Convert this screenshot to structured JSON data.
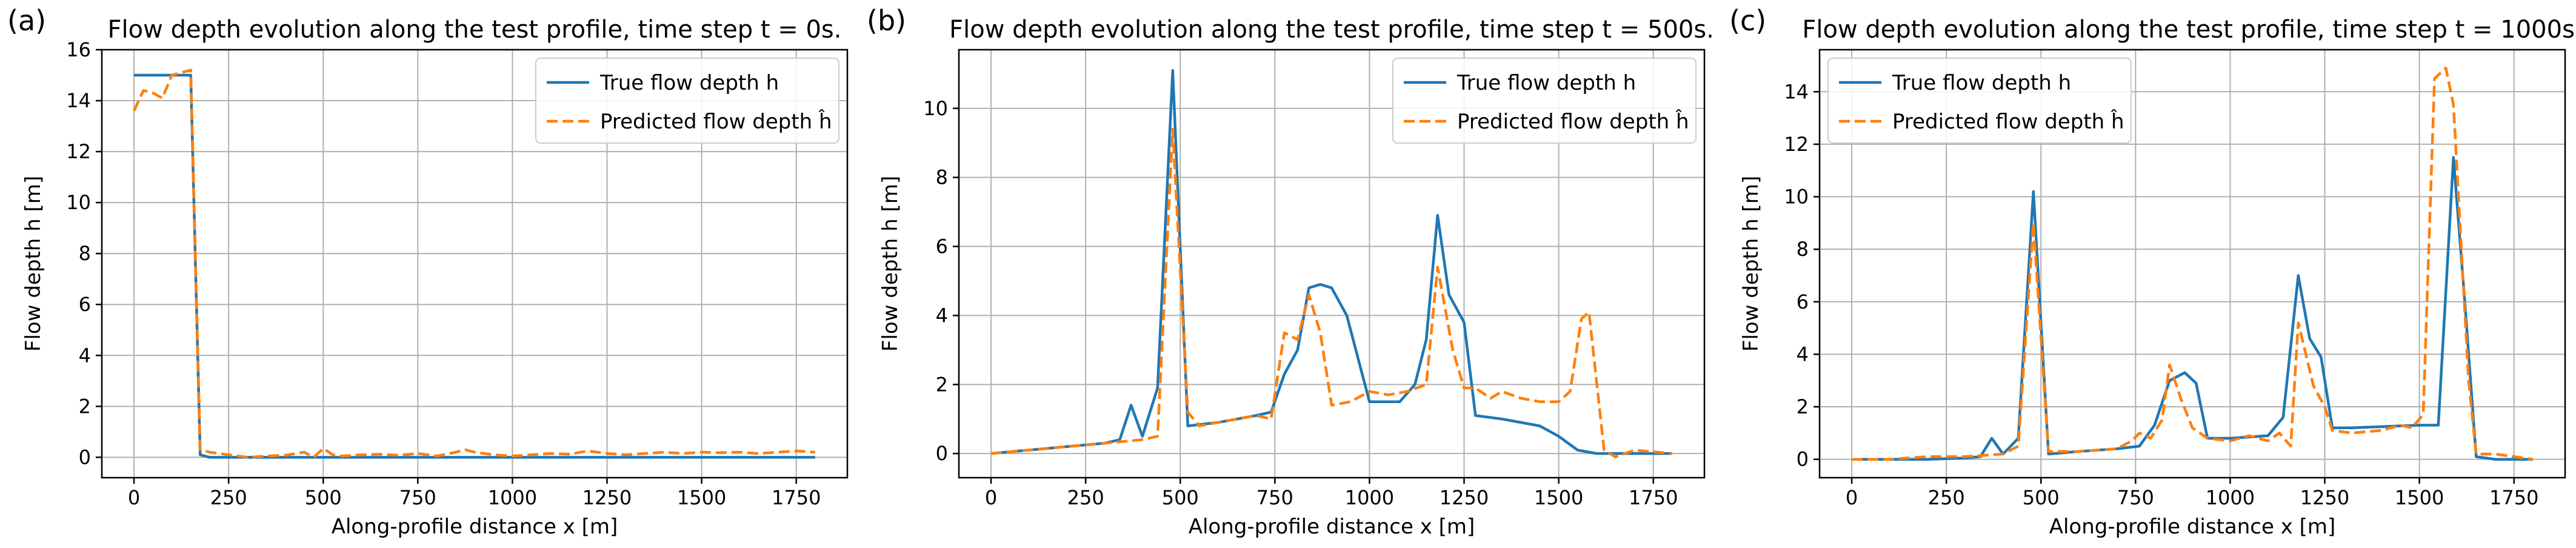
{
  "colors": {
    "true": "#1f77b4",
    "predicted": "#ff7f0e"
  },
  "chart_data": [
    {
      "type": "line",
      "panel_label": "(a)",
      "title": "Flow depth evolution along the test profile, time step t = 0s.",
      "xlabel": "Along-profile distance x [m]",
      "ylabel": "Flow depth h [m]",
      "xlim": [
        -85,
        1885
      ],
      "ylim": [
        -0.8,
        16
      ],
      "xticks": [
        0,
        250,
        500,
        750,
        1000,
        1250,
        1500,
        1750
      ],
      "yticks": [
        0,
        2,
        4,
        6,
        8,
        10,
        12,
        14,
        16
      ],
      "grid": true,
      "legend_position": "upper-right",
      "series": [
        {
          "name": "True flow depth h",
          "style": "solid",
          "x": [
            0,
            25,
            50,
            75,
            100,
            125,
            150,
            175,
            200,
            1800
          ],
          "y": [
            15,
            15,
            15,
            15,
            15,
            15,
            15,
            0.1,
            0,
            0
          ]
        },
        {
          "name": "Predicted flow depth ĥ",
          "style": "dashed",
          "x": [
            0,
            25,
            50,
            75,
            100,
            125,
            150,
            175,
            200,
            250,
            300,
            350,
            400,
            450,
            475,
            500,
            525,
            550,
            600,
            650,
            700,
            750,
            800,
            850,
            875,
            900,
            950,
            1000,
            1050,
            1100,
            1150,
            1200,
            1250,
            1300,
            1350,
            1400,
            1450,
            1500,
            1550,
            1600,
            1650,
            1700,
            1750,
            1800
          ],
          "y": [
            13.6,
            14.4,
            14.3,
            14.1,
            15.0,
            15.1,
            15.2,
            0.3,
            0.2,
            0.1,
            0,
            0.05,
            0.08,
            0.2,
            0,
            0.35,
            0.1,
            0.05,
            0.1,
            0.12,
            0.08,
            0.15,
            0.05,
            0.2,
            0.3,
            0.2,
            0.1,
            0.05,
            0.1,
            0.15,
            0.12,
            0.25,
            0.15,
            0.1,
            0.15,
            0.2,
            0.15,
            0.2,
            0.18,
            0.2,
            0.15,
            0.2,
            0.25,
            0.2
          ]
        }
      ]
    },
    {
      "type": "line",
      "panel_label": "(b)",
      "title": "Flow depth evolution along the test profile, time step t = 500s.",
      "xlabel": "Along-profile distance x [m]",
      "ylabel": "Flow depth h [m]",
      "xlim": [
        -85,
        1885
      ],
      "ylim": [
        -0.7,
        11.7
      ],
      "xticks": [
        0,
        250,
        500,
        750,
        1000,
        1250,
        1500,
        1750
      ],
      "yticks": [
        0,
        2,
        4,
        6,
        8,
        10
      ],
      "grid": true,
      "legend_position": "upper-right",
      "series": [
        {
          "name": "True flow depth h",
          "style": "solid",
          "x": [
            0,
            100,
            200,
            300,
            340,
            370,
            400,
            440,
            480,
            520,
            600,
            700,
            740,
            775,
            810,
            840,
            870,
            900,
            940,
            1000,
            1080,
            1120,
            1150,
            1180,
            1210,
            1250,
            1280,
            1350,
            1400,
            1450,
            1500,
            1550,
            1600,
            1650,
            1800
          ],
          "y": [
            0,
            0.1,
            0.2,
            0.3,
            0.4,
            1.4,
            0.5,
            1.9,
            11.1,
            0.8,
            0.9,
            1.1,
            1.2,
            2.3,
            3.0,
            4.8,
            4.9,
            4.8,
            4.0,
            1.5,
            1.5,
            2.0,
            3.3,
            6.9,
            4.6,
            3.8,
            1.1,
            1.0,
            0.9,
            0.8,
            0.5,
            0.1,
            0,
            0,
            0
          ]
        },
        {
          "name": "Predicted flow depth ĥ",
          "style": "dashed",
          "x": [
            0,
            100,
            200,
            300,
            400,
            440,
            480,
            520,
            550,
            600,
            700,
            740,
            775,
            810,
            840,
            870,
            900,
            950,
            1000,
            1050,
            1100,
            1150,
            1180,
            1220,
            1250,
            1280,
            1320,
            1350,
            1400,
            1450,
            1500,
            1530,
            1560,
            1580,
            1620,
            1650,
            1700,
            1800
          ],
          "y": [
            0,
            0.1,
            0.2,
            0.3,
            0.4,
            0.5,
            9.4,
            1.2,
            0.8,
            0.9,
            1.1,
            1.0,
            3.5,
            3.3,
            4.6,
            3.5,
            1.4,
            1.5,
            1.8,
            1.7,
            1.8,
            2.0,
            5.4,
            3.0,
            1.9,
            1.9,
            1.6,
            1.8,
            1.6,
            1.5,
            1.5,
            1.8,
            3.9,
            4.1,
            0.1,
            -0.1,
            0.1,
            0
          ]
        }
      ]
    },
    {
      "type": "line",
      "panel_label": "(c)",
      "title": "Flow depth evolution along the test profile, time step t = 1000s.",
      "xlabel": "Along-profile distance x [m]",
      "ylabel": "Flow depth h [m]",
      "xlim": [
        -85,
        1885
      ],
      "ylim": [
        -0.7,
        15.6
      ],
      "xticks": [
        0,
        250,
        500,
        750,
        1000,
        1250,
        1500,
        1750
      ],
      "yticks": [
        0,
        2,
        4,
        6,
        8,
        10,
        12,
        14
      ],
      "grid": true,
      "legend_position": "upper-left",
      "series": [
        {
          "name": "True flow depth h",
          "style": "solid",
          "x": [
            0,
            100,
            200,
            300,
            340,
            370,
            400,
            440,
            480,
            520,
            600,
            700,
            760,
            800,
            840,
            880,
            910,
            940,
            1000,
            1100,
            1140,
            1180,
            1210,
            1240,
            1270,
            1320,
            1500,
            1550,
            1590,
            1620,
            1650,
            1700,
            1800
          ],
          "y": [
            0,
            0,
            0,
            0.05,
            0.1,
            0.8,
            0.2,
            0.8,
            10.2,
            0.2,
            0.3,
            0.4,
            0.5,
            1.3,
            3.0,
            3.3,
            2.9,
            0.8,
            0.8,
            0.9,
            1.6,
            7.0,
            4.6,
            3.9,
            1.2,
            1.2,
            1.3,
            1.3,
            11.5,
            6.0,
            0.1,
            0,
            0
          ]
        },
        {
          "name": "Predicted flow depth ĥ",
          "style": "dashed",
          "x": [
            0,
            100,
            200,
            300,
            400,
            440,
            480,
            520,
            600,
            700,
            740,
            760,
            790,
            820,
            840,
            870,
            900,
            940,
            1000,
            1050,
            1100,
            1130,
            1160,
            1180,
            1220,
            1250,
            1270,
            1320,
            1400,
            1450,
            1480,
            1510,
            1540,
            1570,
            1590,
            1630,
            1650,
            1700,
            1800
          ],
          "y": [
            0,
            0,
            0.1,
            0.1,
            0.2,
            0.5,
            9.0,
            0.3,
            0.3,
            0.4,
            0.7,
            1.0,
            0.8,
            1.5,
            3.6,
            2.3,
            1.2,
            0.8,
            0.7,
            0.9,
            0.7,
            1.0,
            0.5,
            5.2,
            2.8,
            2.0,
            1.1,
            1.0,
            1.1,
            1.3,
            1.2,
            1.7,
            14.5,
            14.9,
            13.5,
            3.0,
            0.2,
            0.2,
            0
          ]
        }
      ]
    }
  ]
}
